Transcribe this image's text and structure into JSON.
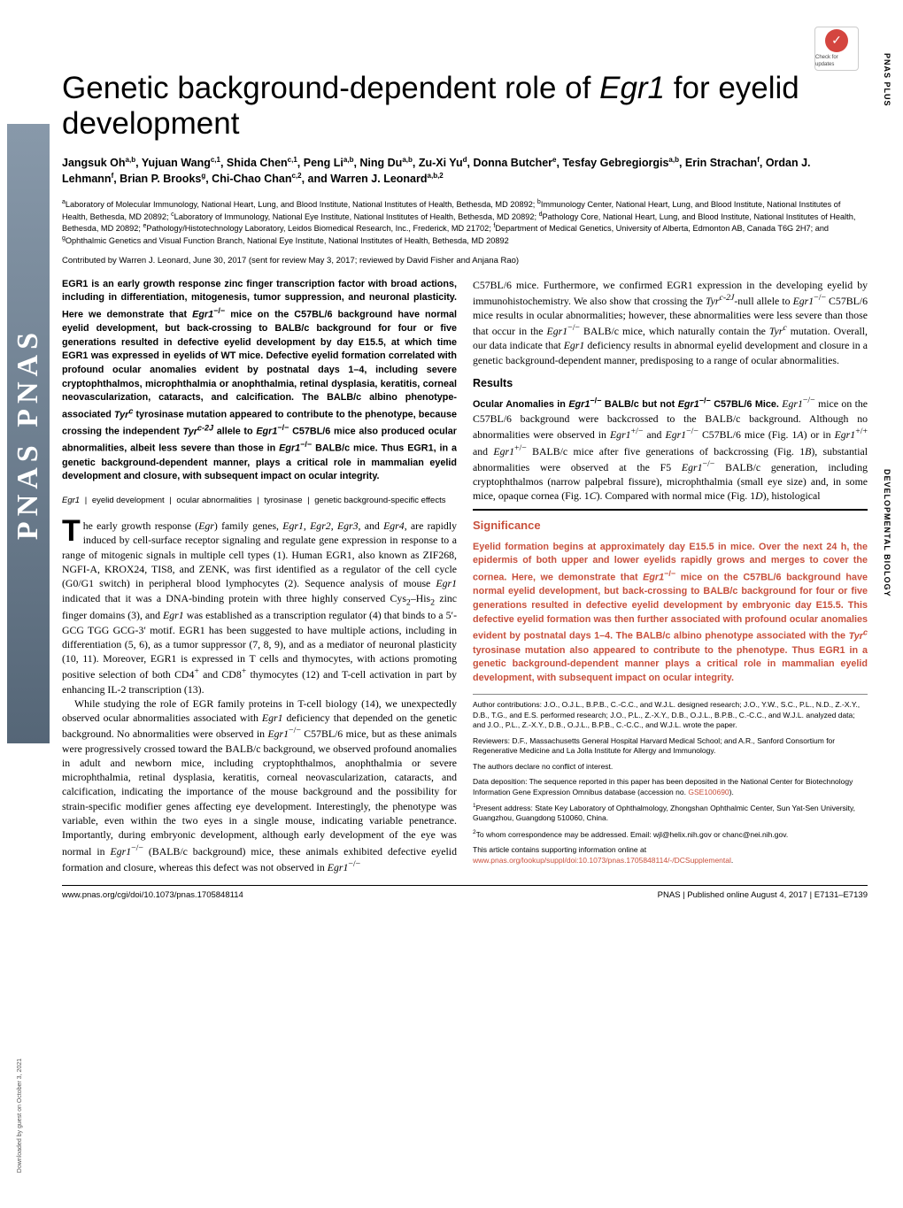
{
  "journal": {
    "side_label_top": "PNAS PLUS",
    "side_label_mid": "DEVELOPMENTAL\nBIOLOGY",
    "logo_text": "PNAS PNAS",
    "check_for_updates": "Check for updates",
    "downloaded_note": "Downloaded by guest on October 3, 2021"
  },
  "title": "Genetic background-dependent role of ",
  "title_gene": "Egr1",
  "title_suffix": " for eyelid development",
  "authors_html": "Jangsuk Oh<sup>a,b</sup>, Yujuan Wang<sup>c,1</sup>, Shida Chen<sup>c,1</sup>, Peng Li<sup>a,b</sup>, Ning Du<sup>a,b</sup>, Zu-Xi Yu<sup>d</sup>, Donna Butcher<sup>e</sup>, Tesfay Gebregiorgis<sup>a,b</sup>, Erin Strachan<sup>f</sup>, Ordan J. Lehmann<sup>f</sup>, Brian P. Brooks<sup>g</sup>, Chi-Chao Chan<sup>c,2</sup>, and Warren J. Leonard<sup>a,b,2</sup>",
  "affiliations_html": "<sup>a</sup>Laboratory of Molecular Immunology, National Heart, Lung, and Blood Institute, National Institutes of Health, Bethesda, MD 20892; <sup>b</sup>Immunology Center, National Heart, Lung, and Blood Institute, National Institutes of Health, Bethesda, MD 20892; <sup>c</sup>Laboratory of Immunology, National Eye Institute, National Institutes of Health, Bethesda, MD 20892; <sup>d</sup>Pathology Core, National Heart, Lung, and Blood Institute, National Institutes of Health, Bethesda, MD 20892; <sup>e</sup>Pathology/Histotechnology Laboratory, Leidos Biomedical Research, Inc., Frederick, MD 21702; <sup>f</sup>Department of Medical Genetics, University of Alberta, Edmonton AB, Canada T6G 2H7; and <sup>g</sup>Ophthalmic Genetics and Visual Function Branch, National Eye Institute, National Institutes of Health, Bethesda, MD 20892",
  "contributed": "Contributed by Warren J. Leonard, June 30, 2017 (sent for review May 3, 2017; reviewed by David Fisher and Anjana Rao)",
  "abstract_html": "EGR1 is an early growth response zinc finger transcription factor with broad actions, including in differentiation, mitogenesis, tumor suppression, and neuronal plasticity. Here we demonstrate that <em>Egr1</em><sup>−/−</sup> mice on the C57BL/6 background have normal eyelid development, but back-crossing to BALB/c background for four or five generations resulted in defective eyelid development by day E15.5, at which time EGR1 was expressed in eyelids of WT mice. Defective eyelid formation correlated with profound ocular anomalies evident by postnatal days 1–4, including severe cryptophthalmos, microphthalmia or anophthalmia, retinal dysplasia, keratitis, corneal neovascularization, cataracts, and calcification. The BALB/c albino phenotype-associated <em>Tyr<sup>c</sup></em> tyrosinase mutation appeared to contribute to the phenotype, because crossing the independent <em>Tyr<sup>c-2J</sup></em> allele to <em>Egr1</em><sup>−/−</sup> C57BL/6 mice also produced ocular abnormalities, albeit less severe than those in <em>Egr1</em><sup>−/−</sup> BALB/c mice. Thus EGR1, in a genetic background-dependent manner, plays a critical role in mammalian eyelid development and closure, with subsequent impact on ocular integrity.",
  "keywords": [
    "Egr1",
    "eyelid development",
    "ocular abnormalities",
    "tyrosinase",
    "genetic background-specific effects"
  ],
  "intro_para1_html": "he early growth response (<em>Egr</em>) family genes, <em>Egr1</em>, <em>Egr2</em>, <em>Egr3</em>, and <em>Egr4</em>, are rapidly induced by cell-surface receptor signaling and regulate gene expression in response to a range of mitogenic signals in multiple cell types (1). Human EGR1, also known as ZIF268, NGFI-A, KROX24, TIS8, and ZENK, was first identified as a regulator of the cell cycle (G0/G1 switch) in peripheral blood lymphocytes (2). Sequence analysis of mouse <em>Egr1</em> indicated that it was a DNA-binding protein with three highly conserved Cys<sub>2</sub>–His<sub>2</sub> zinc finger domains (3), and <em>Egr1</em> was established as a transcription regulator (4) that binds to a 5′-GCG TGG GCG-3′ motif. EGR1 has been suggested to have multiple actions, including in differentiation (5, 6), as a tumor suppressor (7, 8, 9), and as a mediator of neuronal plasticity (10, 11). Moreover, EGR1 is expressed in T cells and thymocytes, with actions promoting positive selection of both CD4<sup>+</sup> and CD8<sup>+</sup> thymocytes (12) and T-cell activation in part by enhancing IL-2 transcription (13).",
  "intro_para2_html": "While studying the role of EGR family proteins in T-cell biology (14), we unexpectedly observed ocular abnormalities associated with <em>Egr1</em> deficiency that depended on the genetic background. No abnormalities were observed in <em>Egr1</em><sup>−/−</sup> C57BL/6 mice, but as these animals were progressively crossed toward the BALB/c background, we observed profound anomalies in adult and newborn mice, including cryptophthalmos, anophthalmia or severe microphthalmia, retinal dysplasia, keratitis, corneal neovascularization, cataracts, and calcification, indicating the importance of the mouse background and the possibility for strain-specific modifier genes affecting eye development. Interestingly, the phenotype was variable, even within the two eyes in a single mouse, indicating variable penetrance. Importantly, during embryonic development, although early development of the eye was normal in <em>Egr1</em><sup>−/−</sup> (BALB/c background) mice, these animals exhibited defective eyelid formation and closure, whereas this defect was not observed in <em>Egr1</em><sup>−/−</sup>",
  "col2_top_html": "C57BL/6 mice. Furthermore, we confirmed EGR1 expression in the developing eyelid by immunohistochemistry. We also show that crossing the <em>Tyr<sup>c-2J</sup></em>-null allele to <em>Egr1</em><sup>−/−</sup> C57BL/6 mice results in ocular abnormalities; however, these abnormalities were less severe than those that occur in the <em>Egr1</em><sup>−/−</sup> BALB/c mice, which naturally contain the <em>Tyr<sup>c</sup></em> mutation. Overall, our data indicate that <em>Egr1</em> deficiency results in abnormal eyelid development and closure in a genetic background-dependent manner, predisposing to a range of ocular abnormalities.",
  "results_head": "Results",
  "results_runin_html": "Ocular Anomalies in <em>Egr1</em><sup>−/−</sup> BALB/c but not <em>Egr1</em><sup>−/−</sup> C57BL/6 Mice.",
  "results_body_html": " <em>Egr1</em><sup>−/−</sup> mice on the C57BL/6 background were backcrossed to the BALB/c background. Although no abnormalities were observed in <em>Egr1</em><sup>+/−</sup> and <em>Egr1</em><sup>−/−</sup> C57BL/6 mice (Fig. 1<em>A</em>) or in <em>Egr1</em><sup>+/+</sup> and <em>Egr1</em><sup>+/−</sup> BALB/c mice after five generations of backcrossing (Fig. 1<em>B</em>), substantial abnormalities were observed at the F5 <em>Egr1</em><sup>−/−</sup> BALB/c generation, including cryptophthalmos (narrow palpebral fissure), microphthalmia (small eye size) and, in some mice, opaque cornea (Fig. 1<em>C</em>). Compared with normal mice (Fig. 1<em>D</em>), histological",
  "significance": {
    "head": "Significance",
    "text_html": "Eyelid formation begins at approximately day E15.5 in mice. Over the next 24 h, the epidermis of both upper and lower eyelids rapidly grows and merges to cover the cornea. Here, we demonstrate that <em>Egr1</em><sup>−/−</sup> mice on the C57BL/6 background have normal eyelid development, but back-crossing to BALB/c background for four or five generations resulted in defective eyelid development by embryonic day E15.5. This defective eyelid formation was then further associated with profound ocular anomalies evident by postnatal days 1–4. The BALB/c albino phenotype associated with the <em>Tyr<sup>c</sup></em> tyrosinase mutation also appeared to contribute to the phenotype. Thus EGR1 in a genetic background-dependent manner plays a critical role in mammalian eyelid development, with subsequent impact on ocular integrity."
  },
  "meta": {
    "author_contrib": "Author contributions: J.O., O.J.L., B.P.B., C.-C.C., and W.J.L. designed research; J.O., Y.W., S.C., P.L., N.D., Z.-X.Y., D.B., T.G., and E.S. performed research; J.O., P.L., Z.-X.Y., D.B., O.J.L., B.P.B., C.-C.C., and W.J.L. analyzed data; and J.O., P.L., Z.-X.Y., D.B., O.J.L., B.P.B., C.-C.C., and W.J.L. wrote the paper.",
    "reviewers": "Reviewers: D.F., Massachusetts General Hospital Harvard Medical School; and A.R., Sanford Consortium for Regenerative Medicine and La Jolla Institute for Allergy and Immunology.",
    "conflict": "The authors declare no conflict of interest.",
    "data_dep": "Data deposition: The sequence reported in this paper has been deposited in the National Center for Biotechnology Information Gene Expression Omnibus database (accession no. ",
    "data_dep_link": "GSE100690",
    "data_dep_suffix": ").",
    "note1": "Present address: State Key Laboratory of Ophthalmology, Zhongshan Ophthalmic Center, Sun Yat-Sen University, Guangzhou, Guangdong 510060, China.",
    "note2": "To whom correspondence may be addressed. Email: wjl@helix.nih.gov or chanc@nei.nih.gov.",
    "supporting_prefix": "This article contains supporting information online at ",
    "supporting_link": "www.pnas.org/lookup/suppl/doi:10.1073/pnas.1705848114/-/DCSupplemental",
    "supporting_suffix": "."
  },
  "footer": {
    "doi": "www.pnas.org/cgi/doi/10.1073/pnas.1705848114",
    "right": "PNAS  |  Published online August 4, 2017  |  E7131–E7139"
  },
  "colors": {
    "accent": "#c8503c",
    "check_badge": "#d4453f"
  }
}
